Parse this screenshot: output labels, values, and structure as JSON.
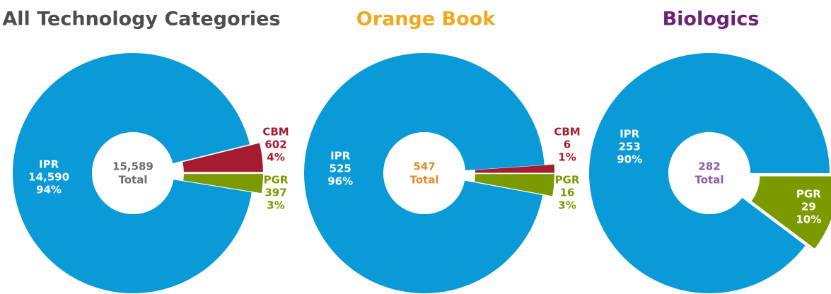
{
  "chart_data": [
    {
      "type": "pie",
      "title": "All Technology Categories",
      "title_color": "#4d4d4f",
      "center_color": "#6b6b6d",
      "labels": [
        "IPR",
        "CBM",
        "PGR"
      ],
      "values": [
        14590,
        602,
        397
      ],
      "value_labels": [
        "14,590",
        "602",
        "397"
      ],
      "percent_labels": [
        "94%",
        "4%",
        "3%"
      ],
      "colors": [
        "#0a9ad8",
        "#a51c30",
        "#7b9a00"
      ],
      "total": 15589,
      "total_label": "15,589",
      "center_label": "Total"
    },
    {
      "type": "pie",
      "title": "Orange Book",
      "title_color": "#f0a81e",
      "center_color": "#e88a2b",
      "labels": [
        "IPR",
        "CBM",
        "PGR"
      ],
      "values": [
        525,
        6,
        16
      ],
      "value_labels": [
        "525",
        "6",
        "16"
      ],
      "percent_labels": [
        "96%",
        "1%",
        "3%"
      ],
      "colors": [
        "#0a9ad8",
        "#a51c30",
        "#7b9a00"
      ],
      "total": 547,
      "total_label": "547",
      "center_label": "Total"
    },
    {
      "type": "pie",
      "title": "Biologics",
      "title_color": "#6d2077",
      "center_color": "#8a5ea8",
      "labels": [
        "IPR",
        "PGR"
      ],
      "values": [
        253,
        29
      ],
      "value_labels": [
        "253",
        "29"
      ],
      "percent_labels": [
        "90%",
        "10%"
      ],
      "colors": [
        "#0a9ad8",
        "#7b9a00"
      ],
      "total": 282,
      "total_label": "282",
      "center_label": "Total"
    }
  ]
}
